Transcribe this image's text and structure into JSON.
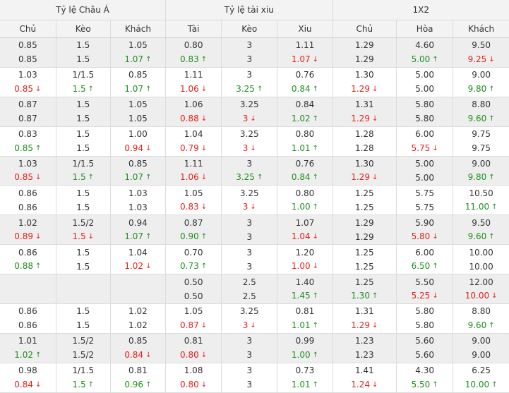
{
  "headers": {
    "groups": [
      "Tỷ lệ Châu Á",
      "Tỷ lệ tài xiu",
      "1X2"
    ],
    "columns": [
      "Chủ",
      "Kèo",
      "Khách",
      "Tài",
      "Kèo",
      "Xiu",
      "Chủ",
      "Hòa",
      "Khách"
    ]
  },
  "colors": {
    "up": "#1f8f1f",
    "down": "#e3231b",
    "band": "#eeeeee",
    "header": "#f3f3f3"
  },
  "icons": {
    "up": "arrow-up-icon",
    "down": "arrow-down-icon"
  },
  "rows": [
    [
      [
        "0.85",
        "1.5",
        "1.05",
        "0.80",
        "3",
        "1.11",
        "1.29",
        "4.60",
        "9.50"
      ],
      [
        "0.85",
        "1.5",
        "1.07↑",
        "0.83↑",
        "3",
        "1.07↓",
        "1.29",
        "5.00↑",
        "9.25↓"
      ]
    ],
    [
      [
        "1.03",
        "1/1.5",
        "0.85",
        "1.11",
        "3",
        "0.76",
        "1.30",
        "5.00",
        "9.00"
      ],
      [
        "0.85↓",
        "1.5↑",
        "1.07↑",
        "1.06↓",
        "3.25↑",
        "0.84↑",
        "1.29↓",
        "5.00",
        "9.80↑"
      ]
    ],
    [
      [
        "0.87",
        "1.5",
        "1.05",
        "1.06",
        "3.25",
        "0.84",
        "1.31",
        "5.80",
        "8.80"
      ],
      [
        "0.87",
        "1.5",
        "1.05",
        "0.88↓",
        "3↓",
        "1.02↑",
        "1.29↓",
        "5.80",
        "9.60↑"
      ]
    ],
    [
      [
        "0.83",
        "1.5",
        "1.00",
        "1.04",
        "3.25",
        "0.80",
        "1.28",
        "6.00",
        "9.75"
      ],
      [
        "0.85↑",
        "1.5",
        "0.94↓",
        "0.79↓",
        "3↓",
        "1.01↑",
        "1.28",
        "5.75↓",
        "9.75"
      ]
    ],
    [
      [
        "1.03",
        "1/1.5",
        "0.85",
        "1.11",
        "3",
        "0.76",
        "1.30",
        "5.00",
        "9.00"
      ],
      [
        "0.85↓",
        "1.5↑",
        "1.07↑",
        "1.06↓",
        "3.25↑",
        "0.84↑",
        "1.29↓",
        "5.00",
        "9.80↑"
      ]
    ],
    [
      [
        "0.86",
        "1.5",
        "1.03",
        "1.05",
        "3.25",
        "0.80",
        "1.25",
        "5.75",
        "10.50"
      ],
      [
        "0.86",
        "1.5",
        "1.03",
        "0.83↓",
        "3↓",
        "1.00↑",
        "1.25",
        "5.75",
        "11.00↑"
      ]
    ],
    [
      [
        "1.02",
        "1.5/2",
        "0.94",
        "0.87",
        "3",
        "1.07",
        "1.29",
        "5.90",
        "9.50"
      ],
      [
        "0.89↓",
        "1.5↓",
        "1.07↑",
        "0.90↑",
        "3",
        "1.04↓",
        "1.29",
        "5.80↓",
        "9.60↑"
      ]
    ],
    [
      [
        "0.86",
        "1.5",
        "1.04",
        "0.70",
        "3",
        "1.20",
        "1.25",
        "6.00",
        "10.00"
      ],
      [
        "0.88↑",
        "1.5",
        "1.02↓",
        "0.73↑",
        "3",
        "1.00↓",
        "1.25",
        "6.50↑",
        "10.00"
      ]
    ],
    [
      [
        "",
        "",
        "",
        "0.50",
        "2.5",
        "1.40",
        "1.25",
        "5.50",
        "12.00"
      ],
      [
        "",
        "",
        "",
        "0.50",
        "2.5",
        "1.45↑",
        "1.30↑",
        "5.25↓",
        "10.00↓"
      ]
    ],
    [
      [
        "0.86",
        "1.5",
        "1.02",
        "1.05",
        "3.25",
        "0.81",
        "1.31",
        "5.80",
        "8.80"
      ],
      [
        "0.86",
        "1.5",
        "1.02",
        "0.87↓",
        "3↓",
        "1.01↑",
        "1.29↓",
        "5.80",
        "9.60↑"
      ]
    ],
    [
      [
        "1.01",
        "1.5/2",
        "0.85",
        "0.81",
        "3",
        "0.99",
        "1.23",
        "5.60",
        "9.00"
      ],
      [
        "1.02↑",
        "1.5/2",
        "0.84↓",
        "0.80↓",
        "3",
        "1.00↑",
        "1.23",
        "5.60",
        "9.00"
      ]
    ],
    [
      [
        "0.98",
        "1/1.5",
        "0.81",
        "1.08",
        "3",
        "0.73",
        "1.41",
        "4.30",
        "6.25"
      ],
      [
        "0.84↓",
        "1.5↑",
        "0.96↑",
        "0.80↓",
        "3",
        "1.01↑",
        "1.24↓",
        "5.50↑",
        "10.00↑"
      ]
    ]
  ]
}
